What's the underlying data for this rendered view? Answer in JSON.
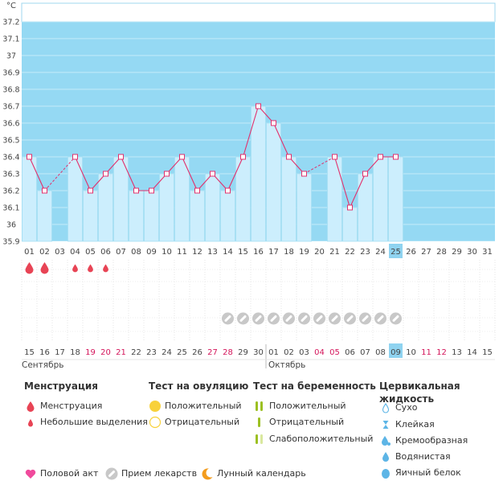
{
  "colors": {
    "period_bg": "#95d9f3",
    "bar_fill": "#cceefd",
    "bar_stroke": "#a6dff3",
    "line": "#e2306c",
    "marker": "#e2306c",
    "weekend_text": "#d4145a",
    "today_bg": "#8fd3f0",
    "pill_gray": "#c8c8c8"
  },
  "chart_data": {
    "type": "line",
    "title": "",
    "y_unit": "°C",
    "ylim": [
      35.9,
      37.2
    ],
    "y_ticks": [
      "37.2",
      "37.1",
      "37",
      "36.9",
      "36.8",
      "36.7",
      "36.6",
      "36.5",
      "36.4",
      "36.3",
      "36.2",
      "36.1",
      "36",
      "35.9"
    ],
    "x_labels": [
      "01",
      "02",
      "03",
      "04",
      "05",
      "06",
      "07",
      "08",
      "09",
      "10",
      "11",
      "12",
      "13",
      "14",
      "15",
      "16",
      "17",
      "18",
      "19",
      "20",
      "21",
      "22",
      "23",
      "24",
      "25",
      "26",
      "27",
      "28",
      "29",
      "30",
      "31"
    ],
    "today_index": 24,
    "series": [
      {
        "values": [
          36.4,
          36.2,
          null,
          36.4,
          36.2,
          36.3,
          36.4,
          36.2,
          36.2,
          36.3,
          36.4,
          36.2,
          36.3,
          36.2,
          36.4,
          36.7,
          36.6,
          36.4,
          36.3,
          null,
          36.4,
          36.1,
          36.3,
          36.4,
          36.4,
          null,
          null,
          null,
          null,
          null,
          null
        ]
      }
    ],
    "dashed_gaps": [
      [
        1,
        3
      ],
      [
        18,
        20
      ]
    ],
    "menstruation": [
      {
        "index": 0,
        "type": "menstruation"
      },
      {
        "index": 1,
        "type": "menstruation"
      },
      {
        "index": 3,
        "type": "spotting"
      },
      {
        "index": 4,
        "type": "spotting"
      },
      {
        "index": 5,
        "type": "spotting"
      }
    ],
    "medication_indices": [
      13,
      14,
      15,
      16,
      17,
      18,
      19,
      20,
      21,
      22,
      23,
      24
    ],
    "cycle_dates": [
      "15",
      "16",
      "17",
      "18",
      "19",
      "20",
      "21",
      "22",
      "23",
      "24",
      "25",
      "26",
      "27",
      "28",
      "29",
      "30",
      "01",
      "02",
      "03",
      "04",
      "05",
      "06",
      "07",
      "08",
      "09",
      "10",
      "11",
      "12",
      "13",
      "14",
      "15"
    ],
    "weekend_indices": [
      4,
      5,
      6,
      12,
      13,
      19,
      20,
      26,
      27
    ],
    "month_labels": [
      {
        "label": "Сентябрь",
        "start_index": 0
      },
      {
        "label": "Октябрь",
        "start_index": 16
      }
    ]
  },
  "legend": {
    "menstruation": {
      "title": "Менструация",
      "items": [
        "Менструация",
        "Небольшие выделения"
      ]
    },
    "ovulation_test": {
      "title": "Тест на овуляцию",
      "items": [
        "Положительный",
        "Отрицательный"
      ]
    },
    "pregnancy_test": {
      "title": "Тест на беременность",
      "items": [
        "Положительный",
        "Отрицательный",
        "Слабоположительный"
      ]
    },
    "cervical_fluid": {
      "title": "Цервикальная жидкость",
      "items": [
        "Сухо",
        "Клейкая",
        "Кремообразная",
        "Водянистая",
        "Яичный белок"
      ]
    },
    "bottom": {
      "intercourse": "Половой акт",
      "medication": "Прием лекарств",
      "lunar": "Лунный календарь"
    }
  }
}
